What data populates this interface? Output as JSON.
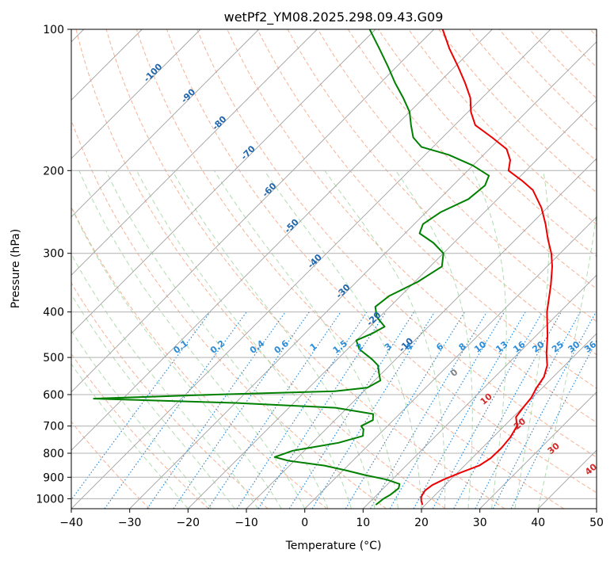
{
  "chart_data": {
    "type": "line",
    "title": "wetPf2_YM08.2025.298.09.43.G09",
    "xlabel": "Temperature (°C)",
    "ylabel": "Pressure (hPa)",
    "xlim": [
      -40,
      50
    ],
    "ylim": [
      1050,
      100
    ],
    "y_scale": "log",
    "x_ticks": [
      -40,
      -30,
      -20,
      -10,
      0,
      10,
      20,
      30,
      40,
      50
    ],
    "x_tick_labels": [
      "−40",
      "−30",
      "−20",
      "−10",
      "0",
      "10",
      "20",
      "30",
      "40",
      "50"
    ],
    "y_ticks": [
      100,
      200,
      300,
      400,
      500,
      600,
      700,
      800,
      900,
      1000
    ],
    "y_tick_labels": [
      "100",
      "200",
      "300",
      "400",
      "500",
      "600",
      "700",
      "800",
      "900",
      "1000"
    ],
    "grid": true,
    "colors": {
      "temperature": "#ee0000",
      "dewpoint": "#008000",
      "isotherm": "#a0a0a0",
      "dry_adiabat": "#f4a582",
      "moist_adiabat": "#a8d8a8",
      "mixing_ratio": "#2b8cd8",
      "isotherm_label": "#2166ac",
      "red_label": "#d62728"
    },
    "series": [
      {
        "key": "temperature",
        "points": [
          {
            "p": 1030,
            "t": 19.5
          },
          {
            "p": 1010,
            "t": 18.6
          },
          {
            "p": 990,
            "t": 17.9
          },
          {
            "p": 960,
            "t": 17.5
          },
          {
            "p": 935,
            "t": 17.8
          },
          {
            "p": 910,
            "t": 18.8
          },
          {
            "p": 880,
            "t": 20.5
          },
          {
            "p": 850,
            "t": 22.5
          },
          {
            "p": 820,
            "t": 23.2
          },
          {
            "p": 780,
            "t": 23.3
          },
          {
            "p": 740,
            "t": 23.0
          },
          {
            "p": 700,
            "t": 22.2
          },
          {
            "p": 670,
            "t": 20.5
          },
          {
            "p": 640,
            "t": 20.1
          },
          {
            "p": 610,
            "t": 19.8
          },
          {
            "p": 580,
            "t": 19.0
          },
          {
            "p": 550,
            "t": 18.4
          },
          {
            "p": 520,
            "t": 17.0
          },
          {
            "p": 490,
            "t": 14.8
          },
          {
            "p": 450,
            "t": 12.0
          },
          {
            "p": 400,
            "t": 7.8
          },
          {
            "p": 350,
            "t": 3.8
          },
          {
            "p": 320,
            "t": 0.9
          },
          {
            "p": 300,
            "t": -1.5
          },
          {
            "p": 280,
            "t": -4.5
          },
          {
            "p": 260,
            "t": -7.5
          },
          {
            "p": 240,
            "t": -11.0
          },
          {
            "p": 220,
            "t": -15.5
          },
          {
            "p": 210,
            "t": -19.0
          },
          {
            "p": 200,
            "t": -23.0
          },
          {
            "p": 190,
            "t": -24.5
          },
          {
            "p": 180,
            "t": -27.0
          },
          {
            "p": 170,
            "t": -31.5
          },
          {
            "p": 160,
            "t": -36.5
          },
          {
            "p": 150,
            "t": -39.5
          },
          {
            "p": 140,
            "t": -42.0
          },
          {
            "p": 130,
            "t": -45.5
          },
          {
            "p": 120,
            "t": -49.5
          },
          {
            "p": 110,
            "t": -54.0
          },
          {
            "p": 100,
            "t": -58.5
          }
        ]
      },
      {
        "key": "dewpoint",
        "points": [
          {
            "p": 1030,
            "t": 11.5
          },
          {
            "p": 1000,
            "t": 11.8
          },
          {
            "p": 980,
            "t": 12.3
          },
          {
            "p": 950,
            "t": 12.6
          },
          {
            "p": 930,
            "t": 12.0
          },
          {
            "p": 910,
            "t": 9.0
          },
          {
            "p": 890,
            "t": 4.5
          },
          {
            "p": 870,
            "t": 0.5
          },
          {
            "p": 850,
            "t": -4.0
          },
          {
            "p": 830,
            "t": -11.0
          },
          {
            "p": 815,
            "t": -14.0
          },
          {
            "p": 790,
            "t": -12.0
          },
          {
            "p": 760,
            "t": -5.5
          },
          {
            "p": 735,
            "t": -2.5
          },
          {
            "p": 712,
            "t": -3.5
          },
          {
            "p": 700,
            "t": -4.5
          },
          {
            "p": 680,
            "t": -3.5
          },
          {
            "p": 660,
            "t": -4.5
          },
          {
            "p": 640,
            "t": -12.0
          },
          {
            "p": 625,
            "t": -30.0
          },
          {
            "p": 612,
            "t": -55.0
          },
          {
            "p": 600,
            "t": -35.0
          },
          {
            "p": 590,
            "t": -15.0
          },
          {
            "p": 580,
            "t": -10.0
          },
          {
            "p": 560,
            "t": -9.0
          },
          {
            "p": 540,
            "t": -10.5
          },
          {
            "p": 520,
            "t": -12.0
          },
          {
            "p": 505,
            "t": -14.0
          },
          {
            "p": 480,
            "t": -18.0
          },
          {
            "p": 460,
            "t": -20.0
          },
          {
            "p": 445,
            "t": -18.5
          },
          {
            "p": 430,
            "t": -17.5
          },
          {
            "p": 410,
            "t": -20.5
          },
          {
            "p": 390,
            "t": -22.5
          },
          {
            "p": 370,
            "t": -22.0
          },
          {
            "p": 345,
            "t": -19.5
          },
          {
            "p": 320,
            "t": -18.0
          },
          {
            "p": 300,
            "t": -20.0
          },
          {
            "p": 285,
            "t": -23.5
          },
          {
            "p": 272,
            "t": -27.5
          },
          {
            "p": 260,
            "t": -28.5
          },
          {
            "p": 245,
            "t": -27.5
          },
          {
            "p": 230,
            "t": -25.0
          },
          {
            "p": 215,
            "t": -24.5
          },
          {
            "p": 205,
            "t": -25.5
          },
          {
            "p": 195,
            "t": -30.0
          },
          {
            "p": 185,
            "t": -36.0
          },
          {
            "p": 178,
            "t": -42.0
          },
          {
            "p": 170,
            "t": -45.0
          },
          {
            "p": 160,
            "t": -47.5
          },
          {
            "p": 150,
            "t": -50.0
          },
          {
            "p": 140,
            "t": -53.5
          },
          {
            "p": 130,
            "t": -57.5
          },
          {
            "p": 120,
            "t": -61.5
          },
          {
            "p": 110,
            "t": -66.0
          },
          {
            "p": 100,
            "t": -71.0
          }
        ]
      }
    ],
    "isotherm_labels": {
      "values": [
        -100,
        -90,
        -80,
        -70,
        -60,
        -50,
        -40,
        -30,
        -20,
        -10
      ],
      "texts": [
        "-100",
        "-90",
        "-80",
        "-70",
        "-60",
        "-50",
        "-40",
        "-30",
        "-20",
        "-10"
      ],
      "pressures": [
        125,
        140,
        160,
        185,
        222,
        265,
        315,
        365,
        418,
        475
      ]
    },
    "mixing_ratio_lines": {
      "values": [
        0.1,
        0.2,
        0.4,
        0.6,
        1,
        1.5,
        2,
        3,
        4,
        6,
        8,
        10,
        13,
        16,
        20,
        25,
        30,
        36
      ],
      "texts": [
        "0.1",
        "0.2",
        "0.4",
        "0.6",
        "1",
        "1.5",
        "2",
        "3",
        "4",
        "6",
        "8",
        "10",
        "13",
        "16",
        "20",
        "25",
        "30",
        "36"
      ],
      "label_pressure": 480
    },
    "theta_labels": {
      "values": [
        0,
        10,
        20,
        30,
        40
      ],
      "texts": [
        "0",
        "10",
        "20",
        "30",
        "40"
      ],
      "pressures": [
        545,
        620,
        700,
        790,
        875
      ]
    }
  }
}
